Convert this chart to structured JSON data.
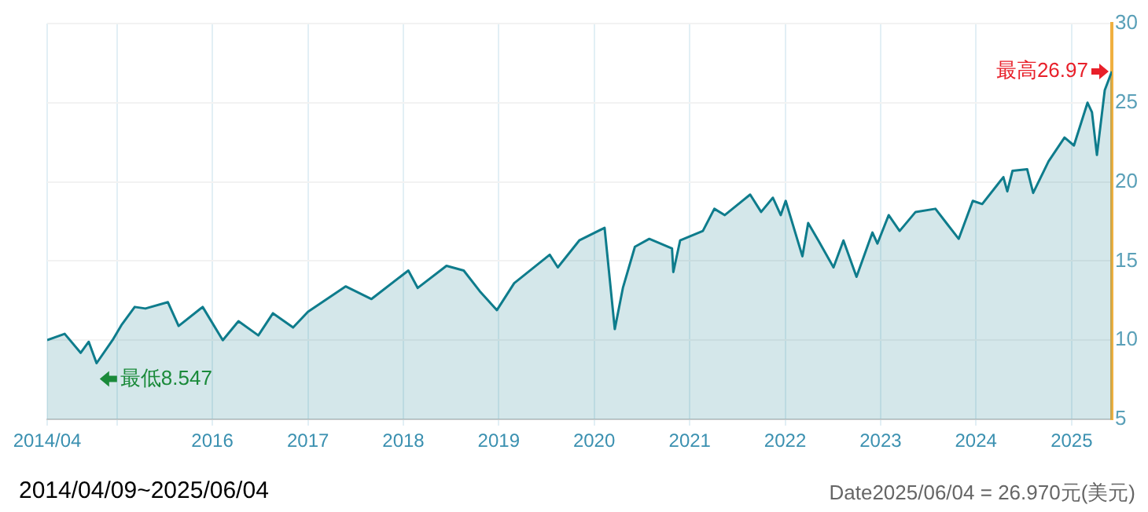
{
  "chart_data": {
    "type": "area",
    "x": [
      "2014-04-09",
      "2014-06-15",
      "2014-08-15",
      "2014-09-15",
      "2014-10-15",
      "2014-12-15",
      "2015-01-20",
      "2015-03-10",
      "2015-04-20",
      "2015-07-15",
      "2015-08-25",
      "2015-11-25",
      "2016-02-10",
      "2016-04-10",
      "2016-06-25",
      "2016-08-20",
      "2016-11-05",
      "2017-01-01",
      "2017-05-25",
      "2017-09-01",
      "2018-01-20",
      "2018-02-25",
      "2018-06-15",
      "2018-08-20",
      "2018-10-20",
      "2018-12-25",
      "2019-03-01",
      "2019-07-15",
      "2019-08-15",
      "2019-11-05",
      "2020-02-10",
      "2020-03-20",
      "2020-04-20",
      "2020-06-05",
      "2020-07-30",
      "2020-10-25",
      "2020-10-30",
      "2020-11-25",
      "2021-02-20",
      "2021-04-05",
      "2021-05-15",
      "2021-08-20",
      "2021-10-01",
      "2021-11-15",
      "2021-12-15",
      "2022-01-03",
      "2022-03-08",
      "2022-03-30",
      "2022-05-08",
      "2022-07-05",
      "2022-08-12",
      "2022-10-01",
      "2022-12-01",
      "2022-12-20",
      "2023-02-01",
      "2023-03-15",
      "2023-05-15",
      "2023-07-30",
      "2023-09-10",
      "2023-10-27",
      "2023-12-20",
      "2024-01-25",
      "2024-04-15",
      "2024-04-30",
      "2024-05-20",
      "2024-07-15",
      "2024-08-07",
      "2024-10-05",
      "2024-12-05",
      "2025-01-10",
      "2025-03-03",
      "2025-03-20",
      "2025-04-08",
      "2025-05-08",
      "2025-06-04"
    ],
    "series": [
      {
        "color": "#0e7c8c",
        "values": [
          10.0,
          10.4,
          9.2,
          9.9,
          8.547,
          10.0,
          11.0,
          12.1,
          12.0,
          12.4,
          10.9,
          12.1,
          10.0,
          11.2,
          10.3,
          11.7,
          10.8,
          11.8,
          13.4,
          12.6,
          14.4,
          13.3,
          14.7,
          14.4,
          13.1,
          11.9,
          13.6,
          15.4,
          14.6,
          16.3,
          17.1,
          10.7,
          13.3,
          15.9,
          16.4,
          15.8,
          14.3,
          16.3,
          16.9,
          18.3,
          17.9,
          19.2,
          18.1,
          19.0,
          17.9,
          18.8,
          15.3,
          17.4,
          16.3,
          14.6,
          16.3,
          14.0,
          16.8,
          16.1,
          17.9,
          16.9,
          18.1,
          18.3,
          17.4,
          16.4,
          18.8,
          18.6,
          20.3,
          19.4,
          20.7,
          20.8,
          19.3,
          21.3,
          22.8,
          22.3,
          25.0,
          24.4,
          21.7,
          25.8,
          26.97
        ]
      }
    ],
    "xlim": [
      "2014-04-09",
      "2025-06-04"
    ],
    "xticks": [
      {
        "value": "2014-04-09",
        "label": "2014/04"
      },
      {
        "value": "2015-01-01",
        "label": null
      },
      {
        "value": "2016-01-01",
        "label": "2016"
      },
      {
        "value": "2017-01-01",
        "label": "2017"
      },
      {
        "value": "2018-01-01",
        "label": "2018"
      },
      {
        "value": "2019-01-01",
        "label": "2019"
      },
      {
        "value": "2020-01-01",
        "label": "2020"
      },
      {
        "value": "2021-01-01",
        "label": "2021"
      },
      {
        "value": "2022-01-01",
        "label": "2022"
      },
      {
        "value": "2023-01-01",
        "label": "2023"
      },
      {
        "value": "2024-01-01",
        "label": "2024"
      },
      {
        "value": "2025-01-01",
        "label": "2025"
      }
    ],
    "ylim": [
      5,
      30
    ],
    "yticks": [
      5,
      10,
      15,
      20,
      25,
      30
    ],
    "grid": true,
    "legend": false,
    "annotations": [
      {
        "text": "最低8.547",
        "x": "2014-10-15",
        "y": 8.547
      },
      {
        "text": "最高26.97",
        "x": "2025-06-04",
        "y": 26.97
      },
      "2014/04/09~2025/06/04",
      "Date2025/06/04 = 26.970元(美元)"
    ]
  }
}
